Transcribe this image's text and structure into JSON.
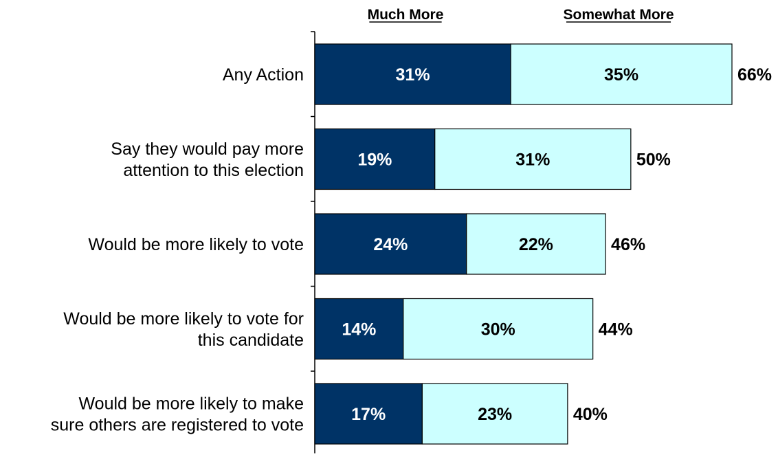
{
  "chart_data": {
    "type": "bar",
    "orientation": "horizontal",
    "stacked": true,
    "categories": [
      [
        "Any Action"
      ],
      [
        "Say they would pay more",
        "attention to this election"
      ],
      [
        "Would be more likely to vote"
      ],
      [
        "Would be more likely to vote for",
        "this candidate"
      ],
      [
        "Would be more likely to make",
        "sure others are registered to vote"
      ]
    ],
    "series": [
      {
        "name": "Much More",
        "values": [
          31,
          19,
          24,
          14,
          17
        ],
        "labels": [
          "31%",
          "19%",
          "24%",
          "14%",
          "17%"
        ],
        "color": "#003366",
        "label_color": "#ffffff"
      },
      {
        "name": "Somewhat More",
        "values": [
          35,
          31,
          22,
          30,
          23
        ],
        "labels": [
          "35%",
          "31%",
          "22%",
          "30%",
          "23%"
        ],
        "color": "#ccffff",
        "label_color": "#000000"
      }
    ],
    "totals": [
      66,
      50,
      46,
      44,
      40
    ],
    "total_labels": [
      "66%",
      "50%",
      "46%",
      "44%",
      "40%"
    ],
    "xlim": [
      0,
      66
    ],
    "legend_position": "top",
    "grid": false
  }
}
